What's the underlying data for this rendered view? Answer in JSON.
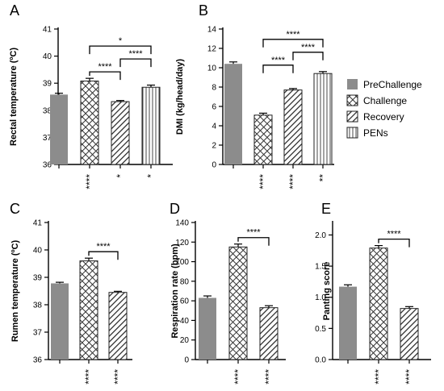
{
  "legend": [
    {
      "label": "PreChallenge",
      "pattern": "solid"
    },
    {
      "label": "Challenge",
      "pattern": "crosshatch"
    },
    {
      "label": "Recovery",
      "pattern": "diagonal"
    },
    {
      "label": "PENs",
      "pattern": "vertical"
    }
  ],
  "colors": {
    "solid_fill": "#8c8c8c",
    "pattern_ink": "#333333",
    "axis": "#000000"
  },
  "chart_data": [
    {
      "panel": "A",
      "type": "bar",
      "ylabel": "Rectal temperature (ºC)",
      "ylim": [
        36,
        41
      ],
      "yticks": [
        "36",
        "37",
        "38",
        "39",
        "40",
        "41"
      ],
      "bars": [
        {
          "group": "PreChallenge",
          "value": 38.58,
          "error": 0.05,
          "below": ""
        },
        {
          "group": "Challenge",
          "value": 39.08,
          "error": 0.1,
          "below": "****"
        },
        {
          "group": "Recovery",
          "value": 38.32,
          "error": 0.04,
          "below": "*"
        },
        {
          "group": "PENs",
          "value": 38.85,
          "error": 0.08,
          "below": "*"
        }
      ],
      "brackets": [
        {
          "from": 1,
          "to": 3,
          "label": "*",
          "level": 3
        },
        {
          "from": 2,
          "to": 3,
          "label": "****",
          "level": 2
        },
        {
          "from": 1,
          "to": 2,
          "label": "****",
          "level": 1
        }
      ]
    },
    {
      "panel": "B",
      "type": "bar",
      "ylabel": "DMI (kg/head/day)",
      "ylim": [
        0,
        14
      ],
      "yticks": [
        "0",
        "2",
        "4",
        "6",
        "8",
        "10",
        "12",
        "14"
      ],
      "bars": [
        {
          "group": "PreChallenge",
          "value": 10.4,
          "error": 0.2,
          "below": ""
        },
        {
          "group": "Challenge",
          "value": 5.1,
          "error": 0.2,
          "below": "****"
        },
        {
          "group": "Recovery",
          "value": 7.7,
          "error": 0.15,
          "below": "****"
        },
        {
          "group": "PENs",
          "value": 9.4,
          "error": 0.2,
          "below": "**"
        }
      ],
      "brackets": [
        {
          "from": 1,
          "to": 3,
          "label": "****",
          "level": 3
        },
        {
          "from": 2,
          "to": 3,
          "label": "****",
          "level": 2
        },
        {
          "from": 1,
          "to": 2,
          "label": "****",
          "level": 1
        }
      ]
    },
    {
      "panel": "C",
      "type": "bar",
      "ylabel": "Rumen temperature (ºC)",
      "ylim": [
        36,
        41
      ],
      "yticks": [
        "36",
        "37",
        "38",
        "39",
        "40",
        "41"
      ],
      "bars": [
        {
          "group": "PreChallenge",
          "value": 38.78,
          "error": 0.04,
          "below": ""
        },
        {
          "group": "Challenge",
          "value": 39.6,
          "error": 0.1,
          "below": "****"
        },
        {
          "group": "Recovery",
          "value": 38.45,
          "error": 0.04,
          "below": "****"
        }
      ],
      "brackets": [
        {
          "from": 1,
          "to": 2,
          "label": "****",
          "level": 1
        }
      ]
    },
    {
      "panel": "D",
      "type": "bar",
      "ylabel": "Respiration rate (bpm)",
      "ylim": [
        0,
        140
      ],
      "yticks": [
        "0",
        "20",
        "40",
        "60",
        "80",
        "100",
        "120",
        "140"
      ],
      "bars": [
        {
          "group": "PreChallenge",
          "value": 63,
          "error": 2,
          "below": ""
        },
        {
          "group": "Challenge",
          "value": 115,
          "error": 3,
          "below": "****"
        },
        {
          "group": "Recovery",
          "value": 53,
          "error": 2,
          "below": "****"
        }
      ],
      "brackets": [
        {
          "from": 1,
          "to": 2,
          "label": "****",
          "level": 1
        }
      ]
    },
    {
      "panel": "E",
      "type": "bar",
      "ylabel": "Panting score",
      "ylim": [
        0,
        2.2
      ],
      "yticks": [
        "0.0",
        "0.5",
        "1.0",
        "1.5",
        "2.0"
      ],
      "ytickvals": [
        0,
        0.5,
        1.0,
        1.5,
        2.0
      ],
      "bars": [
        {
          "group": "PreChallenge",
          "value": 1.17,
          "error": 0.03,
          "below": ""
        },
        {
          "group": "Challenge",
          "value": 1.79,
          "error": 0.04,
          "below": "****"
        },
        {
          "group": "Recovery",
          "value": 0.82,
          "error": 0.03,
          "below": "****"
        }
      ],
      "brackets": [
        {
          "from": 1,
          "to": 2,
          "label": "****",
          "level": 1
        }
      ]
    }
  ]
}
